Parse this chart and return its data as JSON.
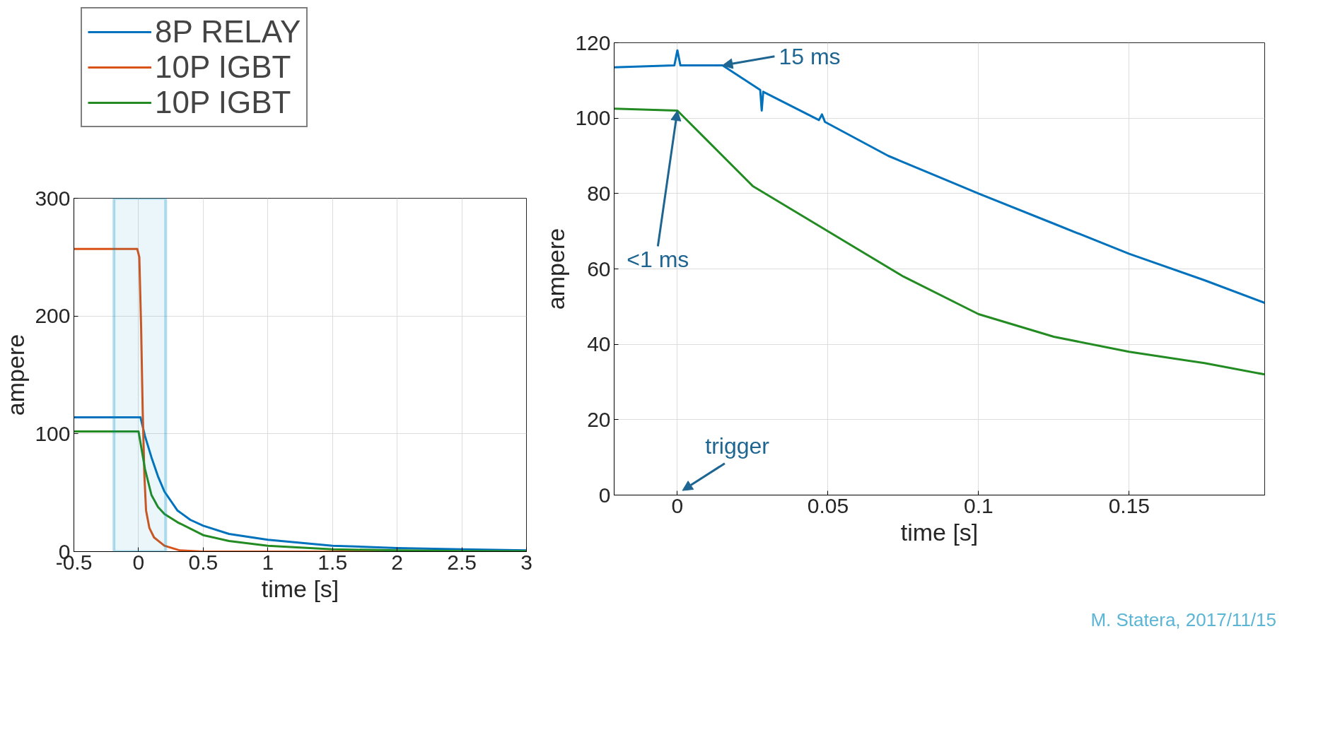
{
  "chart_data": [
    {
      "type": "line",
      "xlabel": "time [s]",
      "ylabel": "ampere",
      "xlim": [
        -0.5,
        3
      ],
      "ylim": [
        0,
        300
      ],
      "xticks": [
        -0.5,
        0,
        0.5,
        1,
        1.5,
        2,
        2.5,
        3
      ],
      "yticks": [
        0,
        100,
        200,
        300
      ],
      "grid": true,
      "legend": "top left",
      "line_style": "solid",
      "bands": [
        {
          "axis": "x",
          "from": -0.19,
          "to": 0.21,
          "label": null,
          "color": "#0092bf"
        }
      ],
      "series": [
        {
          "name": "8P RELAY",
          "color": "#0072bd",
          "x": [
            -0.5,
            -0.1,
            0,
            0.015,
            0.05,
            0.1,
            0.15,
            0.2,
            0.3,
            0.4,
            0.5,
            0.7,
            1.0,
            1.5,
            2.0,
            2.5,
            3.0
          ],
          "values": [
            114,
            114,
            114,
            114,
            98,
            80,
            64,
            51,
            35,
            27,
            22,
            15,
            10,
            5,
            3,
            2,
            1
          ]
        },
        {
          "name": "10P IGBT",
          "color": "#d95319",
          "x": [
            -0.5,
            -0.1,
            -0.01,
            0.006,
            0.02,
            0.032,
            0.045,
            0.058,
            0.084,
            0.12,
            0.2,
            0.32,
            0.5,
            1.0,
            2.0,
            3.0
          ],
          "values": [
            257,
            257,
            257,
            250,
            190,
            120,
            65,
            35,
            20,
            12,
            5,
            1,
            0,
            0,
            0,
            0
          ]
        },
        {
          "name": "10P IGBT",
          "color": "#228b22",
          "x": [
            -0.5,
            -0.1,
            0,
            0.05,
            0.1,
            0.15,
            0.2,
            0.3,
            0.5,
            0.7,
            1.0,
            1.5,
            2.0,
            2.5,
            3.0
          ],
          "values": [
            102,
            102,
            102,
            70,
            48,
            38,
            32,
            25,
            14,
            9,
            5,
            2,
            1,
            0.5,
            0.3
          ]
        }
      ]
    },
    {
      "type": "line",
      "xlabel": "time [s]",
      "ylabel": "ampere",
      "xlim": [
        -0.021,
        0.195
      ],
      "ylim": [
        0,
        120
      ],
      "xticks": [
        0,
        0.05,
        0.1,
        0.15
      ],
      "yticks": [
        0,
        20,
        40,
        60,
        80,
        100,
        120
      ],
      "grid": true,
      "line_style": "solid",
      "annotations": [
        {
          "text": "15 ms",
          "x": 0.015,
          "y": 114
        },
        {
          "text": "<1 ms",
          "x": 0,
          "y": 102
        },
        "trigger",
        "M. Statera, 2017/11/15"
      ],
      "series": [
        {
          "color": "#0072bd",
          "x": [
            -0.021,
            -0.001,
            0,
            0.001,
            0.015,
            0.0275,
            0.028,
            0.0285,
            0.047,
            0.048,
            0.049,
            0.07,
            0.1,
            0.125,
            0.15,
            0.175,
            0.195
          ],
          "values": [
            113.5,
            114,
            118,
            114,
            114,
            107.5,
            102,
            107,
            99.5,
            101,
            99,
            90,
            80,
            72,
            64,
            57,
            51
          ]
        },
        {
          "color": "#228b22",
          "x": [
            -0.021,
            0,
            0.01,
            0.025,
            0.05,
            0.075,
            0.1,
            0.125,
            0.15,
            0.175,
            0.195
          ],
          "values": [
            102.5,
            102,
            94,
            82,
            70,
            58,
            48,
            42,
            38,
            35,
            32
          ]
        }
      ]
    }
  ]
}
